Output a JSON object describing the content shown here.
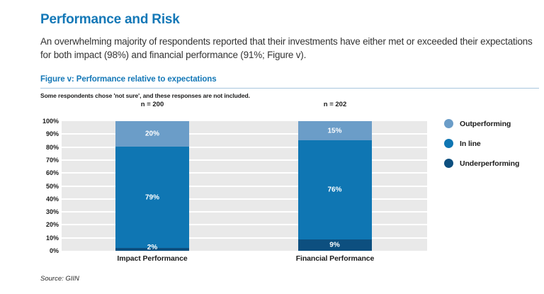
{
  "page": {
    "title": "Performance and Risk",
    "paragraph": "An overwhelming majority of respondents reported that their investments have either met or exceeded their expectations for both impact (98%) and financial performance (91%; Figure v).",
    "source": "Source: GIIN"
  },
  "figure": {
    "title": "Figure v: Performance relative to expectations",
    "note": "Some respondents chose 'not sure', and these responses are not included."
  },
  "chart_data": {
    "type": "bar",
    "stacked": true,
    "title": "Figure v: Performance relative to expectations",
    "categories": [
      "Impact Performance",
      "Financial Performance"
    ],
    "n_labels": [
      "n = 200",
      "n = 202"
    ],
    "series": [
      {
        "name": "Underperforming",
        "color": "#0d4f7f",
        "values": [
          2,
          9
        ]
      },
      {
        "name": "In line",
        "color": "#0f76b3",
        "values": [
          79,
          76
        ]
      },
      {
        "name": "Outperforming",
        "color": "#6b9dc8",
        "values": [
          20,
          15
        ]
      }
    ],
    "legend": [
      {
        "label": "Outperforming",
        "color": "#6b9dc8"
      },
      {
        "label": "In line",
        "color": "#0f76b3"
      },
      {
        "label": "Underperforming",
        "color": "#0d4f7f"
      }
    ],
    "yticks": [
      "100%",
      "90%",
      "80%",
      "70%",
      "60%",
      "50%",
      "40%",
      "30%",
      "20%",
      "10%",
      "0%"
    ],
    "ylim": [
      0,
      100
    ],
    "grid": true,
    "legend_position": "right",
    "plot_background": "#e9e9e9",
    "gridline_color": "#ffffff"
  },
  "colors": {
    "heading_blue": "#1478b7",
    "rule_blue": "#a9c6de",
    "text_dark": "#1b1b1b"
  }
}
